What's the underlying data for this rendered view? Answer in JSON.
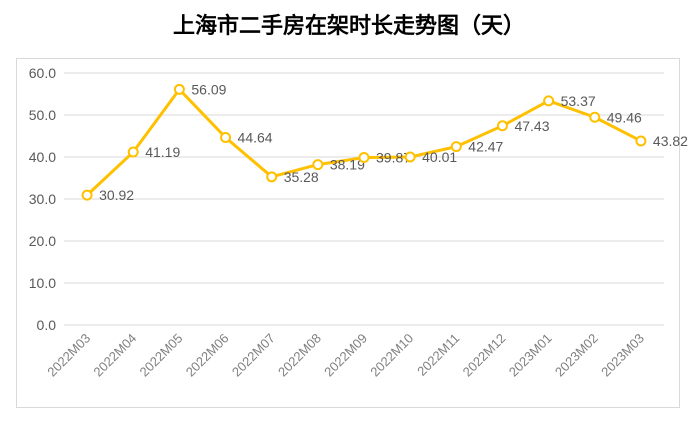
{
  "title": "上海市二手房在架时长走势图（天）",
  "chart_data": {
    "type": "line",
    "title": "上海市二手房在架时长走势图（天）",
    "xlabel": "",
    "ylabel": "",
    "categories": [
      "2022M03",
      "2022M04",
      "2022M05",
      "2022M06",
      "2022M07",
      "2022M08",
      "2022M09",
      "2022M10",
      "2022M11",
      "2022M12",
      "2023M01",
      "2023M02",
      "2023M03"
    ],
    "series": [
      {
        "values": [
          30.92,
          41.19,
          56.09,
          44.64,
          35.28,
          38.19,
          39.87,
          40.01,
          42.47,
          47.43,
          53.37,
          49.46,
          43.82
        ]
      }
    ],
    "value_labels": [
      "30.92",
      "41.19",
      "56.09",
      "44.64",
      "35.28",
      "38.19",
      "39.87",
      "40.01",
      "42.47",
      "47.43",
      "53.37",
      "49.46",
      "43.82"
    ],
    "ylim": [
      0,
      60
    ],
    "yticks": [
      "0.0",
      "10.0",
      "20.0",
      "30.0",
      "40.0",
      "50.0",
      "60.0"
    ],
    "grid": "horizontal",
    "legend": "none",
    "line_color": "#FFC000",
    "marker_fill": "#ffffff",
    "axis_text_color": "#595959",
    "grid_color": "#d9d9d9"
  }
}
